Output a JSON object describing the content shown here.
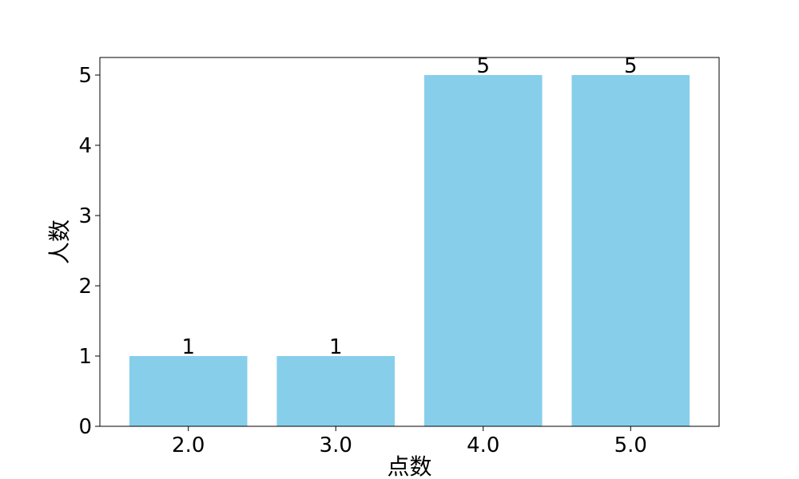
{
  "chart_data": {
    "type": "bar",
    "title": "",
    "xlabel": "点数",
    "ylabel": "人数",
    "categories": [
      "2.0",
      "3.0",
      "4.0",
      "5.0"
    ],
    "values": [
      1,
      1,
      5,
      5
    ],
    "data_labels": [
      "1",
      "1",
      "5",
      "5"
    ],
    "ylim": [
      0,
      5.25
    ],
    "yticks": [
      0,
      1,
      2,
      3,
      4,
      5
    ],
    "ytick_labels": [
      "0",
      "1",
      "2",
      "3",
      "4",
      "5"
    ],
    "grid": false,
    "legend": "none",
    "bar_color": "#87CEEB",
    "axis_color": "#000000"
  }
}
